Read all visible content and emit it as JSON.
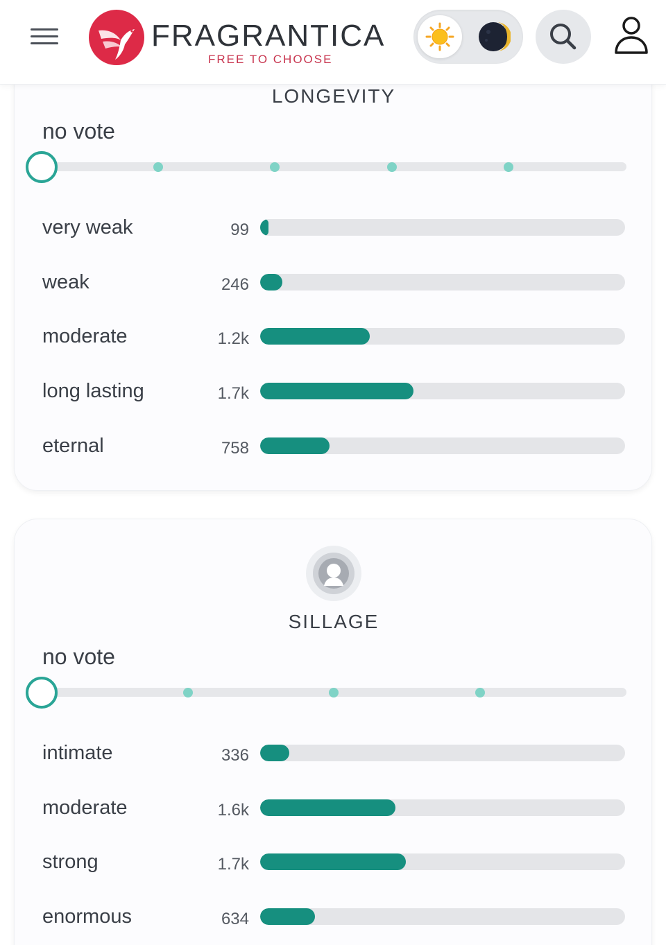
{
  "header": {
    "brand": "FRAGRANTICA",
    "tagline": "FREE TO CHOOSE",
    "icons": {
      "menu": "hamburger-icon",
      "logo": "hummingbird-logo",
      "light": "sun-icon",
      "dark": "moon-icon",
      "search": "search-icon",
      "user": "user-icon"
    }
  },
  "colors": {
    "accent": "#168f7f",
    "slider_accent": "#2aa596",
    "brand_red": "#dd2a47"
  },
  "longevity": {
    "title": "LONGEVITY",
    "vote_status": "no vote",
    "slider_selected": 0,
    "slider_steps": 5,
    "max_fraction_base": 1700,
    "rows": [
      {
        "label": "very weak",
        "count": "99",
        "fraction": 0.02
      },
      {
        "label": "weak",
        "count": "246",
        "fraction": 0.06
      },
      {
        "label": "moderate",
        "count": "1.2k",
        "fraction": 0.3
      },
      {
        "label": "long lasting",
        "count": "1.7k",
        "fraction": 0.42
      },
      {
        "label": "eternal",
        "count": "758",
        "fraction": 0.19
      }
    ]
  },
  "sillage": {
    "title": "SILLAGE",
    "vote_status": "no vote",
    "slider_selected": 0,
    "slider_steps": 4,
    "rows": [
      {
        "label": "intimate",
        "count": "336",
        "fraction": 0.08
      },
      {
        "label": "moderate",
        "count": "1.6k",
        "fraction": 0.37
      },
      {
        "label": "strong",
        "count": "1.7k",
        "fraction": 0.4
      },
      {
        "label": "enormous",
        "count": "634",
        "fraction": 0.15
      }
    ]
  }
}
